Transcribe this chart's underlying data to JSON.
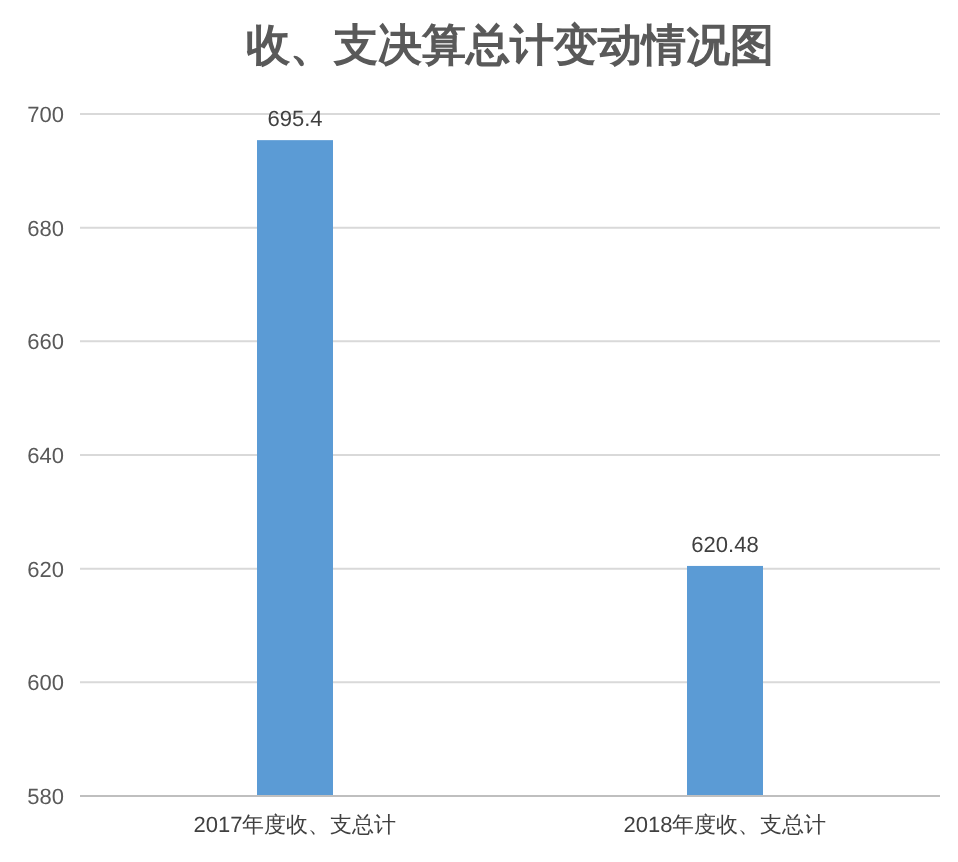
{
  "chart_data": {
    "type": "bar",
    "title": "收、支决算总计变动情况图",
    "categories": [
      "2017年度收、支总计",
      "2018年度收、支总计"
    ],
    "values": [
      695.4,
      620.48
    ],
    "color": "#5b9bd5",
    "ylim": [
      580,
      700
    ],
    "yticks": [
      580,
      600,
      620,
      640,
      660,
      680,
      700
    ],
    "grid": "y",
    "data_labels": true
  }
}
